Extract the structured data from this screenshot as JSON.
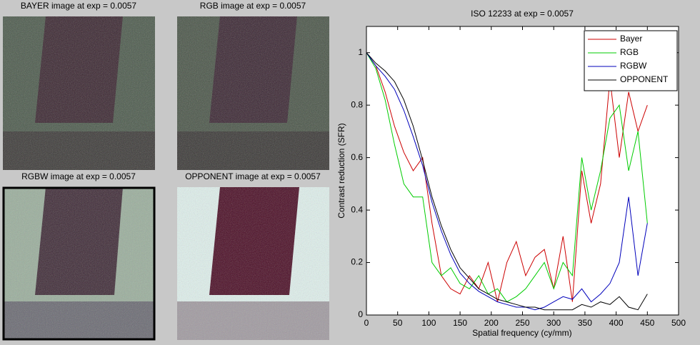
{
  "images": [
    {
      "title": "BAYER image at exp = 0.0057"
    },
    {
      "title": "RGB image at exp = 0.0057"
    },
    {
      "title": "RGBW image at exp = 0.0057"
    },
    {
      "title": "OPPONENT image at exp = 0.0057"
    }
  ],
  "chart_data": {
    "type": "line",
    "title": "ISO 12233 at exp = 0.0057",
    "x_label": "Spatial frequency (cy/mm)",
    "y_label": "Contrast reduction (SFR)",
    "x": [
      0,
      15,
      30,
      45,
      60,
      75,
      90,
      105,
      120,
      135,
      150,
      165,
      180,
      195,
      210,
      225,
      240,
      255,
      270,
      285,
      300,
      315,
      330,
      345,
      360,
      375,
      390,
      405,
      420,
      435,
      450
    ],
    "series": [
      {
        "name": "Bayer",
        "color": "#cc0000",
        "values": [
          1,
          0.95,
          0.85,
          0.72,
          0.62,
          0.55,
          0.6,
          0.35,
          0.15,
          0.1,
          0.08,
          0.15,
          0.1,
          0.2,
          0.05,
          0.2,
          0.28,
          0.15,
          0.22,
          0.25,
          0.1,
          0.3,
          0.05,
          0.55,
          0.35,
          0.5,
          0.9,
          0.6,
          0.85,
          0.7,
          0.8
        ]
      },
      {
        "name": "RGB",
        "color": "#00cc00",
        "values": [
          1,
          0.94,
          0.82,
          0.65,
          0.5,
          0.45,
          0.45,
          0.2,
          0.15,
          0.18,
          0.12,
          0.1,
          0.15,
          0.08,
          0.1,
          0.05,
          0.07,
          0.1,
          0.15,
          0.2,
          0.1,
          0.2,
          0.15,
          0.6,
          0.4,
          0.55,
          0.75,
          0.8,
          0.55,
          0.7,
          0.35
        ]
      },
      {
        "name": "RGBW",
        "color": "#0000bb",
        "values": [
          1,
          0.95,
          0.91,
          0.86,
          0.78,
          0.68,
          0.57,
          0.43,
          0.32,
          0.23,
          0.16,
          0.12,
          0.09,
          0.07,
          0.05,
          0.04,
          0.03,
          0.03,
          0.02,
          0.03,
          0.05,
          0.07,
          0.06,
          0.1,
          0.05,
          0.08,
          0.12,
          0.2,
          0.45,
          0.15,
          0.35
        ]
      },
      {
        "name": "OPPONENT",
        "color": "#000000",
        "values": [
          1,
          0.96,
          0.93,
          0.89,
          0.82,
          0.72,
          0.59,
          0.45,
          0.34,
          0.25,
          0.18,
          0.14,
          0.1,
          0.08,
          0.06,
          0.05,
          0.04,
          0.03,
          0.03,
          0.02,
          0.02,
          0.02,
          0.02,
          0.04,
          0.03,
          0.05,
          0.04,
          0.07,
          0.03,
          0.02,
          0.08
        ]
      }
    ],
    "xlim": [
      0,
      500
    ],
    "ylim": [
      0,
      1.1
    ],
    "xticks": [
      0,
      50,
      100,
      150,
      200,
      250,
      300,
      350,
      400,
      450,
      500
    ],
    "yticks": [
      0,
      0.2,
      0.4,
      0.6,
      0.8,
      1
    ],
    "legend": "upper right",
    "grid": false
  }
}
